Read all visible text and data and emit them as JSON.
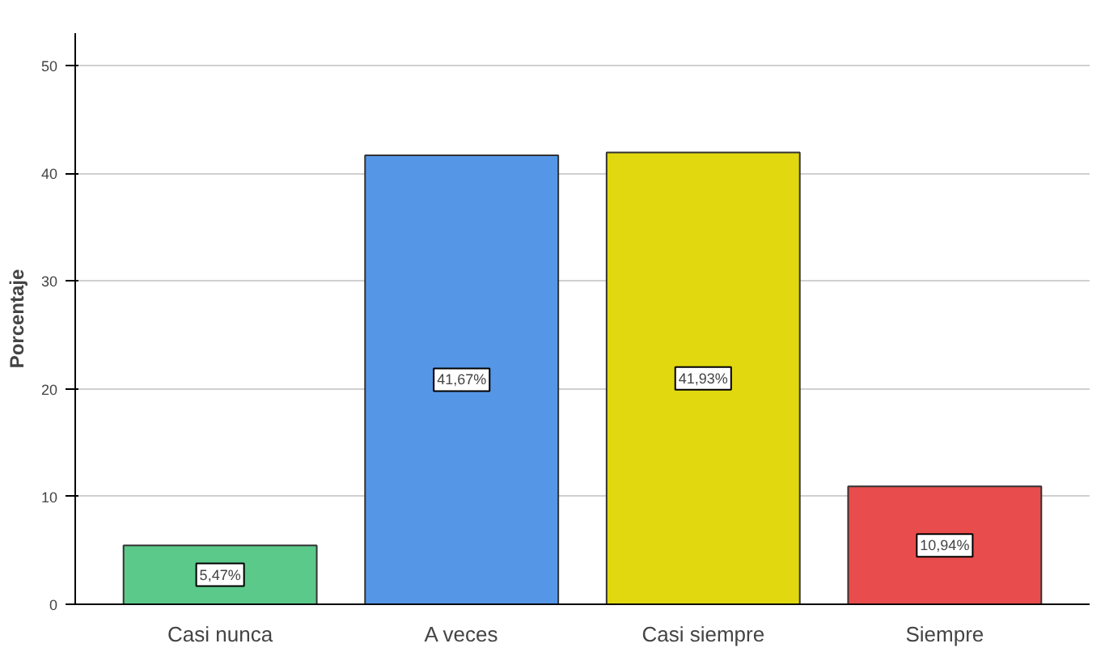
{
  "chart_data": {
    "type": "bar",
    "ylabel": "Porcentaje",
    "categories": [
      "Casi nunca",
      "A veces",
      "Casi siempre",
      "Siempre"
    ],
    "values": [
      5.47,
      41.67,
      41.93,
      10.94
    ],
    "colors": [
      "#5bc98a",
      "#5596e6",
      "#e1d80f",
      "#e94c4c"
    ],
    "value_labels": [
      "5,47%",
      "41,67%",
      "41,93%",
      "10,94%"
    ],
    "ylim": [
      0,
      53
    ],
    "yticks": [
      0,
      10,
      20,
      30,
      40,
      50
    ],
    "grid": "y"
  }
}
